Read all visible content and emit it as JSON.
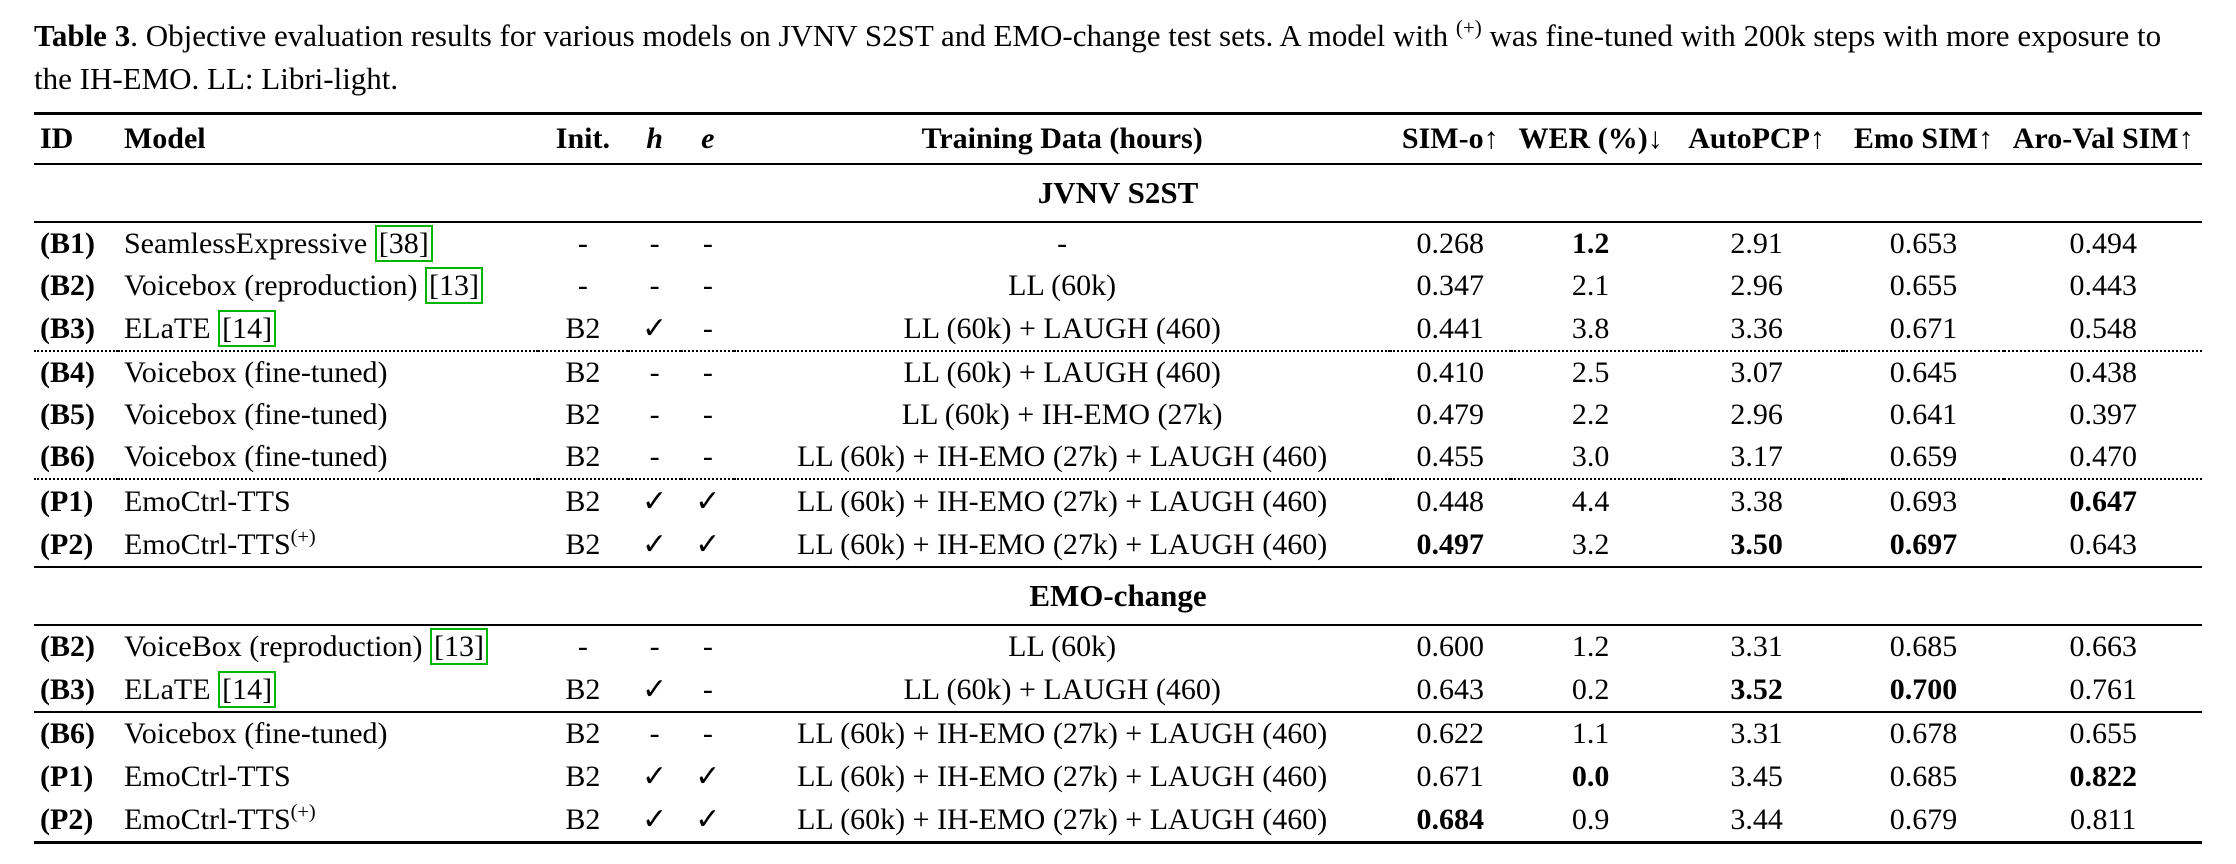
{
  "caption": {
    "label": "Table 3",
    "body_before_sup": ". Objective evaluation results for various models on JVNV S2ST and EMO-change test sets. A model with ",
    "sup": "(+)",
    "body_after_sup": " was fine-tuned with 200k steps with more exposure to the IH-EMO. LL: Libri-light."
  },
  "table": {
    "citation_border_color": "#00B400",
    "columns": [
      {
        "key": "id",
        "label": "ID",
        "align": "left"
      },
      {
        "key": "model",
        "label": "Model",
        "align": "left"
      },
      {
        "key": "init",
        "label": "Init.",
        "align": "center"
      },
      {
        "key": "h",
        "label": "h",
        "align": "center",
        "italic": true
      },
      {
        "key": "e",
        "label": "e",
        "align": "center",
        "italic": true
      },
      {
        "key": "training-data",
        "label": "Training Data (hours)",
        "align": "center"
      },
      {
        "key": "sim-o",
        "label": "SIM-o↑",
        "align": "center"
      },
      {
        "key": "wer",
        "label": "WER (%)↓",
        "align": "center"
      },
      {
        "key": "autopcp",
        "label": "AutoPCP↑",
        "align": "center"
      },
      {
        "key": "emo-sim",
        "label": "Emo SIM↑",
        "align": "center"
      },
      {
        "key": "aro-val-sim",
        "label": "Aro-Val SIM↑",
        "align": "center"
      }
    ],
    "sections": [
      {
        "title": "JVNV S2ST",
        "groups": [
          {
            "separator_after": "dotted",
            "rows": [
              {
                "id": "(B1)",
                "model": "SeamlessExpressive",
                "sup": "",
                "cite": "[38]",
                "init": "-",
                "h": "-",
                "e": "-",
                "training": "-",
                "metrics": [
                  "0.268",
                  "1.2",
                  "2.91",
                  "0.653",
                  "0.494"
                ],
                "bold": [
                  false,
                  true,
                  false,
                  false,
                  false
                ]
              },
              {
                "id": "(B2)",
                "model": "Voicebox (reproduction)",
                "sup": "",
                "cite": "[13]",
                "init": "-",
                "h": "-",
                "e": "-",
                "training": "LL (60k)",
                "metrics": [
                  "0.347",
                  "2.1",
                  "2.96",
                  "0.655",
                  "0.443"
                ],
                "bold": [
                  false,
                  false,
                  false,
                  false,
                  false
                ]
              },
              {
                "id": "(B3)",
                "model": "ELaTE",
                "sup": "",
                "cite": "[14]",
                "init": "B2",
                "h": "✓",
                "e": "-",
                "training": "LL (60k) + LAUGH (460)",
                "metrics": [
                  "0.441",
                  "3.8",
                  "3.36",
                  "0.671",
                  "0.548"
                ],
                "bold": [
                  false,
                  false,
                  false,
                  false,
                  false
                ]
              }
            ]
          },
          {
            "separator_after": "dotted",
            "rows": [
              {
                "id": "(B4)",
                "model": "Voicebox (fine-tuned)",
                "sup": "",
                "cite": "",
                "init": "B2",
                "h": "-",
                "e": "-",
                "training": "LL (60k) + LAUGH (460)",
                "metrics": [
                  "0.410",
                  "2.5",
                  "3.07",
                  "0.645",
                  "0.438"
                ],
                "bold": [
                  false,
                  false,
                  false,
                  false,
                  false
                ]
              },
              {
                "id": "(B5)",
                "model": "Voicebox (fine-tuned)",
                "sup": "",
                "cite": "",
                "init": "B2",
                "h": "-",
                "e": "-",
                "training": "LL (60k) + IH-EMO (27k)",
                "metrics": [
                  "0.479",
                  "2.2",
                  "2.96",
                  "0.641",
                  "0.397"
                ],
                "bold": [
                  false,
                  false,
                  false,
                  false,
                  false
                ]
              },
              {
                "id": "(B6)",
                "model": "Voicebox (fine-tuned)",
                "sup": "",
                "cite": "",
                "init": "B2",
                "h": "-",
                "e": "-",
                "training": "LL (60k) + IH-EMO (27k) + LAUGH (460)",
                "metrics": [
                  "0.455",
                  "3.0",
                  "3.17",
                  "0.659",
                  "0.470"
                ],
                "bold": [
                  false,
                  false,
                  false,
                  false,
                  false
                ]
              }
            ]
          },
          {
            "separator_after": "none",
            "rows": [
              {
                "id": "(P1)",
                "model": "EmoCtrl-TTS",
                "sup": "",
                "cite": "",
                "init": "B2",
                "h": "✓",
                "e": "✓",
                "training": "LL (60k) + IH-EMO (27k) + LAUGH (460)",
                "metrics": [
                  "0.448",
                  "4.4",
                  "3.38",
                  "0.693",
                  "0.647"
                ],
                "bold": [
                  false,
                  false,
                  false,
                  false,
                  true
                ]
              },
              {
                "id": "(P2)",
                "model": "EmoCtrl-TTS",
                "sup": "(+)",
                "cite": "",
                "init": "B2",
                "h": "✓",
                "e": "✓",
                "training": "LL (60k) + IH-EMO (27k) + LAUGH (460)",
                "metrics": [
                  "0.497",
                  "3.2",
                  "3.50",
                  "0.697",
                  "0.643"
                ],
                "bold": [
                  true,
                  false,
                  true,
                  true,
                  false
                ]
              }
            ]
          }
        ]
      },
      {
        "title": "EMO-change",
        "groups": [
          {
            "separator_after": "solid",
            "rows": [
              {
                "id": "(B2)",
                "model": "VoiceBox (reproduction)",
                "sup": "",
                "cite": "[13]",
                "init": "-",
                "h": "-",
                "e": "-",
                "training": "LL (60k)",
                "metrics": [
                  "0.600",
                  "1.2",
                  "3.31",
                  "0.685",
                  "0.663"
                ],
                "bold": [
                  false,
                  false,
                  false,
                  false,
                  false
                ]
              },
              {
                "id": "(B3)",
                "model": "ELaTE",
                "sup": "",
                "cite": "[14]",
                "init": "B2",
                "h": "✓",
                "e": "-",
                "training": "LL (60k) + LAUGH (460)",
                "metrics": [
                  "0.643",
                  "0.2",
                  "3.52",
                  "0.700",
                  "0.761"
                ],
                "bold": [
                  false,
                  false,
                  true,
                  true,
                  false
                ]
              }
            ]
          },
          {
            "separator_after": "none",
            "rows": [
              {
                "id": "(B6)",
                "model": "Voicebox (fine-tuned)",
                "sup": "",
                "cite": "",
                "init": "B2",
                "h": "-",
                "e": "-",
                "training": "LL (60k) + IH-EMO (27k) + LAUGH (460)",
                "metrics": [
                  "0.622",
                  "1.1",
                  "3.31",
                  "0.678",
                  "0.655"
                ],
                "bold": [
                  false,
                  false,
                  false,
                  false,
                  false
                ]
              },
              {
                "id": "(P1)",
                "model": "EmoCtrl-TTS",
                "sup": "",
                "cite": "",
                "init": "B2",
                "h": "✓",
                "e": "✓",
                "training": "LL (60k) + IH-EMO (27k) + LAUGH (460)",
                "metrics": [
                  "0.671",
                  "0.0",
                  "3.45",
                  "0.685",
                  "0.822"
                ],
                "bold": [
                  false,
                  true,
                  false,
                  false,
                  true
                ]
              },
              {
                "id": "(P2)",
                "model": "EmoCtrl-TTS",
                "sup": "(+)",
                "cite": "",
                "init": "B2",
                "h": "✓",
                "e": "✓",
                "training": "LL (60k) + IH-EMO (27k) + LAUGH (460)",
                "metrics": [
                  "0.684",
                  "0.9",
                  "3.44",
                  "0.679",
                  "0.811"
                ],
                "bold": [
                  true,
                  false,
                  false,
                  false,
                  false
                ]
              }
            ]
          }
        ]
      }
    ]
  }
}
